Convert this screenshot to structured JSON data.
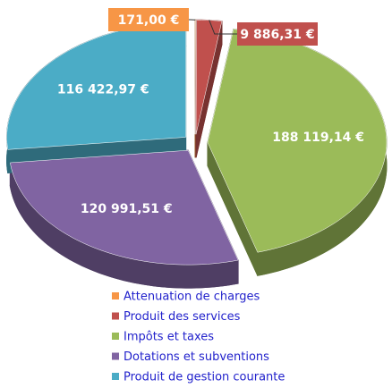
{
  "chart_data": {
    "type": "pie",
    "categories": [
      "Attenuation de charges",
      "Produit des services",
      "Impôts et taxes",
      "Dotations et subventions",
      "Produit de gestion courante"
    ],
    "values": [
      171.0,
      9886.31,
      188119.14,
      120991.51,
      116422.97
    ],
    "value_labels": [
      "171,00 €",
      "9 886,31 €",
      "188 119,14 €",
      "120 991,51 €",
      "116 422,97 €"
    ],
    "colors": [
      "#f79646",
      "#c0504d",
      "#9bbb59",
      "#8064a2",
      "#4bacc6"
    ],
    "legend": "bottom"
  }
}
